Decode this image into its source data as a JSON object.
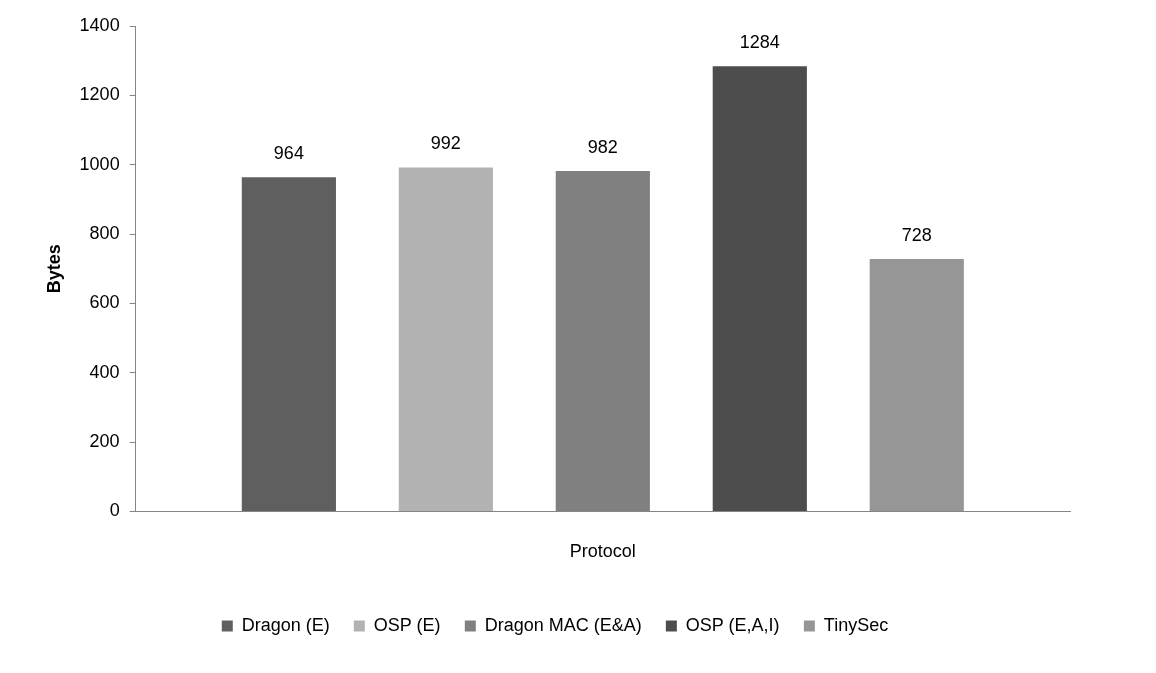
{
  "chart_data": {
    "type": "bar",
    "ylabel": "Bytes",
    "categories": [
      "Protocol"
    ],
    "series": [
      {
        "name": "Dragon (E)",
        "color": "#5f5f5f",
        "values": [
          964
        ]
      },
      {
        "name": "OSP (E)",
        "color": "#b2b2b2",
        "values": [
          992
        ]
      },
      {
        "name": "Dragon MAC (E&A)",
        "color": "#808080",
        "values": [
          982
        ]
      },
      {
        "name": "OSP (E,A,I)",
        "color": "#4d4d4d",
        "values": [
          1284
        ]
      },
      {
        "name": "TinySec",
        "color": "#969696",
        "values": [
          728
        ]
      }
    ],
    "ylim": [
      0,
      1400
    ],
    "yticks": [
      0,
      200,
      400,
      600,
      800,
      1000,
      1200,
      1400
    ],
    "grid": false,
    "legend": "bottom",
    "data_labels": true
  }
}
